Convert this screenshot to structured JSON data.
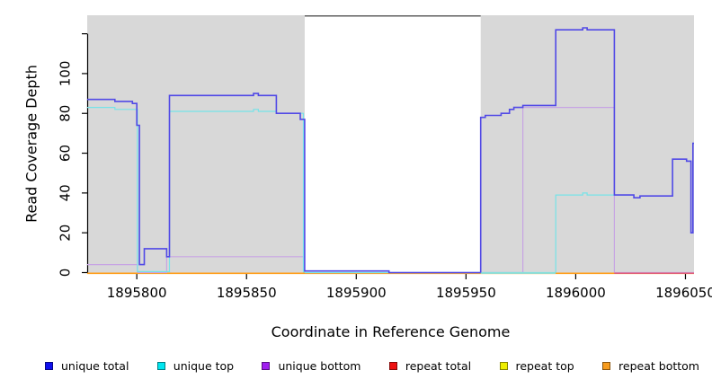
{
  "figure": {
    "x_axis_title": "Coordinate in Reference Genome",
    "y_axis_title": "Read Coverage Depth"
  },
  "legend": {
    "items": [
      {
        "label": "unique total",
        "color": "#1010ee"
      },
      {
        "label": "unique top",
        "color": "#00e6f0"
      },
      {
        "label": "unique bottom",
        "color": "#a020f0"
      },
      {
        "label": "repeat total",
        "color": "#ee1111"
      },
      {
        "label": "repeat top",
        "color": "#eeee00"
      },
      {
        "label": "repeat bottom",
        "color": "#f79c1e"
      }
    ]
  },
  "chart_data": {
    "type": "line",
    "subtype": "step",
    "title": "",
    "xlabel": "Coordinate in Reference Genome",
    "ylabel": "Read Coverage Depth",
    "xlim": [
      1895777.4,
      1896053.9
    ],
    "ylim": [
      0,
      129.3
    ],
    "grid": false,
    "legend_position": "bottom",
    "background_shaded": "#d8d8d8",
    "axis_color": "#000000",
    "top_border_color": "#5f5f5f",
    "x_ticks": [
      {
        "v": 1895800,
        "label": "1895800"
      },
      {
        "v": 1895850,
        "label": "1895850"
      },
      {
        "v": 1895900,
        "label": "1895900"
      },
      {
        "v": 1895950,
        "label": "1895950"
      },
      {
        "v": 1896000,
        "label": "1896000"
      },
      {
        "v": 1896050,
        "label": "1896050"
      }
    ],
    "y_ticks": [
      {
        "v": 0,
        "label": "0"
      },
      {
        "v": 20,
        "label": "20"
      },
      {
        "v": 40,
        "label": "40"
      },
      {
        "v": 60,
        "label": "60"
      },
      {
        "v": 80,
        "label": "80"
      },
      {
        "v": 100,
        "label": "100"
      },
      {
        "v": 120,
        "label": ""
      }
    ],
    "shaded_regions": [
      {
        "from": 1895777.4,
        "to": 1895876.5
      },
      {
        "from": 1895956.7,
        "to": 1896053.9
      }
    ],
    "series": [
      {
        "name": "repeat top",
        "color": "#f0f030",
        "width": 1.3,
        "steps": [
          [
            1895777.4,
            0
          ]
        ]
      },
      {
        "name": "repeat total",
        "color": "#e25e76",
        "width": 1.3,
        "steps": [
          [
            1895777.4,
            0
          ]
        ]
      },
      {
        "name": "repeat bottom",
        "color": "#ff9e1a",
        "width": 1.5,
        "steps": [
          [
            1895777.4,
            0
          ]
        ]
      },
      {
        "name": "unique bottom",
        "color": "#c7a4e4",
        "width": 1.2,
        "steps": [
          [
            1895777.4,
            4
          ],
          [
            1895800.3,
            0
          ],
          [
            1895813.6,
            8
          ],
          [
            1895876.5,
            0
          ],
          [
            1895975.9,
            83
          ],
          [
            1896017.6,
            0
          ]
        ]
      },
      {
        "name": "unique top",
        "color": "#76e3e8",
        "width": 1.2,
        "steps": [
          [
            1895777.4,
            83
          ],
          [
            1895790.0,
            82
          ],
          [
            1895800.3,
            0.5
          ],
          [
            1895814.9,
            81
          ],
          [
            1895853.2,
            82
          ],
          [
            1895855.4,
            81
          ],
          [
            1895863.6,
            80
          ],
          [
            1895875.9,
            0
          ],
          [
            1895990.9,
            39
          ],
          [
            1896003.2,
            40
          ],
          [
            1896005.2,
            39
          ],
          [
            1896026.5,
            37.6
          ],
          [
            1896029.3,
            38.5
          ],
          [
            1896044.1,
            57
          ],
          [
            1896050.5,
            56
          ],
          [
            1896052.5,
            20
          ],
          [
            1896053.4,
            65
          ]
        ]
      },
      {
        "name": "unique total",
        "color": "#5149e6",
        "width": 1.6,
        "steps": [
          [
            1895777.4,
            87
          ],
          [
            1895790.0,
            86
          ],
          [
            1895798.0,
            85
          ],
          [
            1895800.0,
            74
          ],
          [
            1895801.2,
            4
          ],
          [
            1895803.4,
            12
          ],
          [
            1895813.6,
            8
          ],
          [
            1895814.9,
            89
          ],
          [
            1895853.2,
            90
          ],
          [
            1895855.4,
            89
          ],
          [
            1895863.6,
            80
          ],
          [
            1895874.5,
            77
          ],
          [
            1895876.5,
            0.8
          ],
          [
            1895914.9,
            0
          ],
          [
            1895956.7,
            78
          ],
          [
            1895958.8,
            79
          ],
          [
            1895966.0,
            80
          ],
          [
            1895969.8,
            82
          ],
          [
            1895971.8,
            83
          ],
          [
            1895975.9,
            84
          ],
          [
            1895990.9,
            122
          ],
          [
            1896003.2,
            123
          ],
          [
            1896005.2,
            122
          ],
          [
            1896017.6,
            39
          ],
          [
            1896026.5,
            37.6
          ],
          [
            1896029.3,
            38.5
          ],
          [
            1896044.1,
            57
          ],
          [
            1896050.5,
            56
          ],
          [
            1896052.5,
            20
          ],
          [
            1896053.4,
            65
          ]
        ]
      }
    ],
    "baseline_segments": [
      {
        "from": 1895777.4,
        "to": 1895800.3,
        "color": "#ff9e1a"
      },
      {
        "from": 1895815.6,
        "to": 1895876.5,
        "color": "#ff9e1a"
      },
      {
        "from": 1895956.7,
        "to": 1895990.9,
        "color": "#95dcd0"
      },
      {
        "from": 1895990.9,
        "to": 1896017.6,
        "color": "#ff9e1a"
      },
      {
        "from": 1896017.6,
        "to": 1896053.9,
        "color": "#e25e76"
      }
    ]
  }
}
